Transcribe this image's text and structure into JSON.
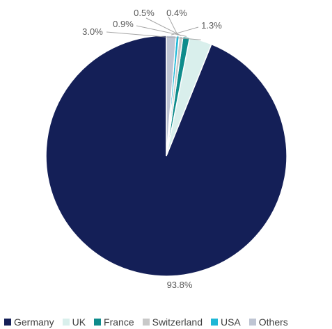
{
  "chart_data": {
    "type": "pie",
    "title": "",
    "slices": [
      {
        "name": "Germany",
        "value": 93.8,
        "label": "93.8%",
        "color": "#141f57"
      },
      {
        "name": "UK",
        "value": 3.0,
        "label": "3.0%",
        "color": "#d9efec"
      },
      {
        "name": "France",
        "value": 0.9,
        "label": "0.9%",
        "color": "#0e8c8c"
      },
      {
        "name": "Switzerland",
        "value": 0.5,
        "label": "0.5%",
        "color": "#c8c8c8"
      },
      {
        "name": "USA",
        "value": 0.4,
        "label": "0.4%",
        "color": "#1fb7d6"
      },
      {
        "name": "Others",
        "value": 1.3,
        "label": "1.3%",
        "color": "#bfc5d3"
      }
    ],
    "start_angle_deg": 0,
    "direction": "counterclockwise",
    "legend_position": "bottom"
  }
}
